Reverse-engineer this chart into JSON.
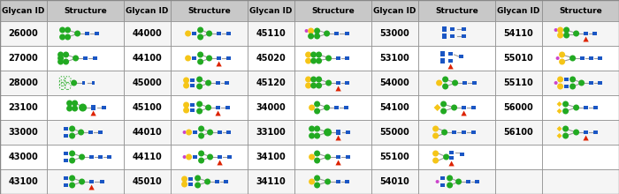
{
  "table_columns": [
    [
      "26000",
      "27000",
      "28000",
      "23100",
      "33000",
      "43000",
      "43100"
    ],
    [
      "44000",
      "44100",
      "45000",
      "45100",
      "44010",
      "44110",
      "45010"
    ],
    [
      "45110",
      "45020",
      "45120",
      "34000",
      "33100",
      "34100",
      "34110"
    ],
    [
      "53000",
      "53100",
      "54000",
      "54100",
      "55000",
      "55100",
      "54010"
    ],
    [
      "54110",
      "55010",
      "55110",
      "56000",
      "56100",
      "",
      ""
    ]
  ],
  "GREEN": "#22aa22",
  "BLUE": "#1a56c4",
  "YELLOW": "#f5c518",
  "RED": "#dd2200",
  "MAGENTA": "#cc44cc",
  "header_bg": "#c8c8c8",
  "even_bg": "#f5f5f5",
  "odd_bg": "#ffffff",
  "border_color": "#888888"
}
